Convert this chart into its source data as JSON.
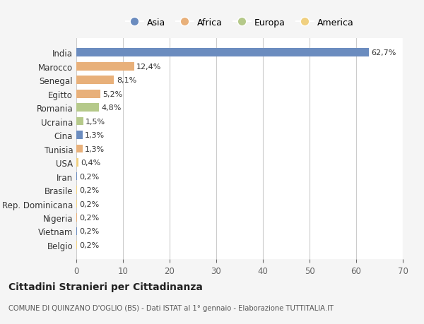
{
  "categories": [
    "India",
    "Marocco",
    "Senegal",
    "Egitto",
    "Romania",
    "Ucraina",
    "Cina",
    "Tunisia",
    "USA",
    "Iran",
    "Brasile",
    "Rep. Dominicana",
    "Nigeria",
    "Vietnam",
    "Belgio"
  ],
  "values": [
    62.7,
    12.4,
    8.1,
    5.2,
    4.8,
    1.5,
    1.3,
    1.3,
    0.4,
    0.2,
    0.2,
    0.2,
    0.2,
    0.2,
    0.2
  ],
  "labels": [
    "62,7%",
    "12,4%",
    "8,1%",
    "5,2%",
    "4,8%",
    "1,5%",
    "1,3%",
    "1,3%",
    "0,4%",
    "0,2%",
    "0,2%",
    "0,2%",
    "0,2%",
    "0,2%",
    "0,2%"
  ],
  "colors": [
    "#6b8cbf",
    "#e8b07a",
    "#e8b07a",
    "#e8b07a",
    "#b5c98a",
    "#b5c98a",
    "#6b8cbf",
    "#e8b07a",
    "#f0d080",
    "#6b8cbf",
    "#f0d080",
    "#f0d080",
    "#e8b07a",
    "#6b8cbf",
    "#f0d080"
  ],
  "legend": [
    {
      "label": "Asia",
      "color": "#6b8cbf"
    },
    {
      "label": "Africa",
      "color": "#e8b07a"
    },
    {
      "label": "Europa",
      "color": "#b5c98a"
    },
    {
      "label": "America",
      "color": "#f0d080"
    }
  ],
  "xlim": [
    0,
    70
  ],
  "xticks": [
    0,
    10,
    20,
    30,
    40,
    50,
    60,
    70
  ],
  "title": "Cittadini Stranieri per Cittadinanza",
  "subtitle": "COMUNE DI QUINZANO D'OGLIO (BS) - Dati ISTAT al 1° gennaio - Elaborazione TUTTITALIA.IT",
  "background_color": "#f5f5f5",
  "bar_background": "#ffffff"
}
